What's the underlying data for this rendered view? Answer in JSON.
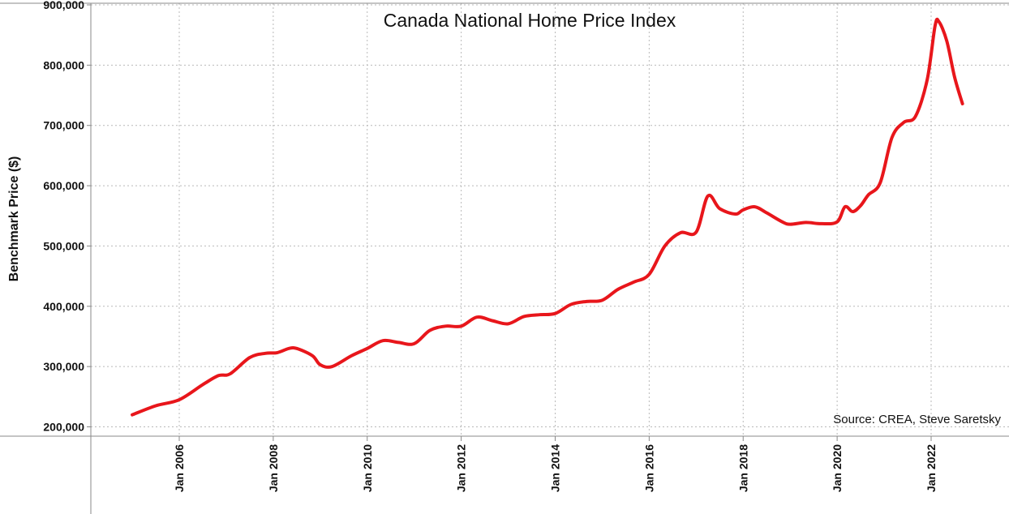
{
  "chart_data": {
    "type": "line",
    "title": "Canada National Home Price Index",
    "ylabel": "Benchmark Price ($)",
    "xlabel": "",
    "source": "Source: CREA, Steve Saretsky",
    "ylim": [
      190000,
      900000
    ],
    "xlim": [
      "2005-01",
      "2022-12"
    ],
    "y_ticks": [
      200000,
      300000,
      400000,
      500000,
      600000,
      700000,
      800000,
      900000
    ],
    "y_tick_labels": [
      "200,000",
      "300,000",
      "400,000",
      "500,000",
      "600,000",
      "700,000",
      "800,000",
      "900,000"
    ],
    "x_ticks": [
      "2006-01",
      "2008-01",
      "2010-01",
      "2012-01",
      "2014-01",
      "2016-01",
      "2018-01",
      "2020-01",
      "2022-01"
    ],
    "x_tick_labels": [
      "Jan 2006",
      "Jan 2008",
      "Jan 2010",
      "Jan 2012",
      "Jan 2014",
      "Jan 2016",
      "Jan 2018",
      "Jan 2020",
      "Jan 2022"
    ],
    "grid": true,
    "series": [
      {
        "color": "#e8161b",
        "x": [
          "2005-01",
          "2005-07",
          "2006-01",
          "2006-07",
          "2006-11",
          "2007-02",
          "2007-07",
          "2007-11",
          "2008-02",
          "2008-05",
          "2008-07",
          "2008-11",
          "2009-01",
          "2009-04",
          "2009-09",
          "2010-01",
          "2010-05",
          "2010-09",
          "2011-01",
          "2011-05",
          "2011-09",
          "2012-01",
          "2012-05",
          "2012-09",
          "2013-01",
          "2013-05",
          "2013-09",
          "2014-01",
          "2014-05",
          "2014-09",
          "2015-01",
          "2015-05",
          "2015-09",
          "2016-01",
          "2016-05",
          "2016-09",
          "2017-01",
          "2017-04",
          "2017-07",
          "2017-11",
          "2018-01",
          "2018-04",
          "2018-07",
          "2018-11",
          "2019-01",
          "2019-05",
          "2019-09",
          "2020-01",
          "2020-03",
          "2020-05",
          "2020-07",
          "2020-09",
          "2020-12",
          "2021-03",
          "2021-06",
          "2021-09",
          "2021-12",
          "2022-02",
          "2022-03",
          "2022-05",
          "2022-07",
          "2022-09"
        ],
        "y": [
          220000,
          235000,
          245000,
          270000,
          285000,
          288000,
          315000,
          322000,
          323000,
          330000,
          330000,
          318000,
          303000,
          300000,
          318000,
          330000,
          343000,
          340000,
          338000,
          360000,
          367000,
          367000,
          382000,
          376000,
          371000,
          383000,
          386000,
          388000,
          403000,
          408000,
          410000,
          428000,
          440000,
          453000,
          500000,
          522000,
          523000,
          583000,
          562000,
          553000,
          560000,
          565000,
          555000,
          540000,
          536000,
          539000,
          537000,
          540000,
          565000,
          557000,
          567000,
          585000,
          605000,
          680000,
          705000,
          715000,
          776000,
          865000,
          872000,
          840000,
          780000,
          736000
        ]
      }
    ]
  }
}
